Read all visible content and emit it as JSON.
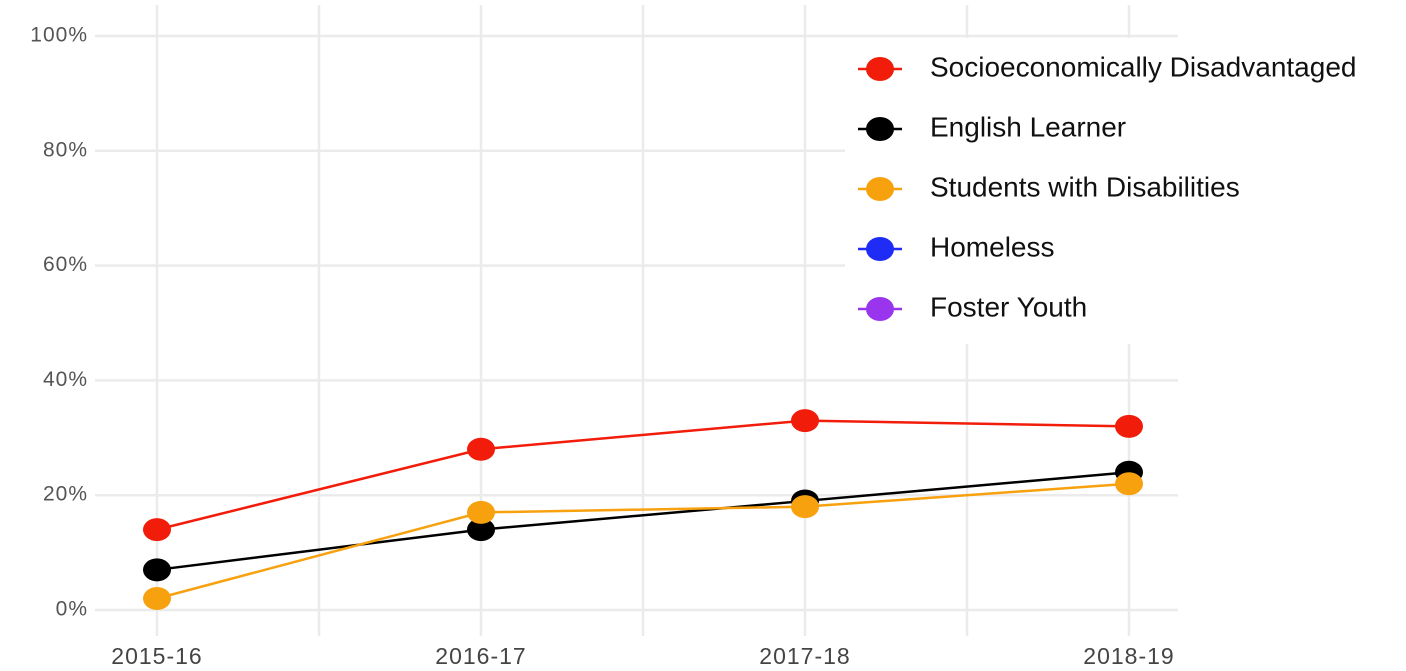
{
  "chart_data": {
    "type": "line",
    "categories": [
      "2015-16",
      "2016-17",
      "2017-18",
      "2018-19"
    ],
    "series": [
      {
        "name": "Socioeconomically Disadvantaged",
        "color": "#f21c0a",
        "values": [
          14,
          28,
          33,
          32
        ]
      },
      {
        "name": "English Learner",
        "color": "#000000",
        "values": [
          7,
          14,
          19,
          24
        ]
      },
      {
        "name": "Students with Disabilities",
        "color": "#f7a10f",
        "values": [
          2,
          17,
          18,
          22
        ]
      },
      {
        "name": "Homeless",
        "color": "#1f2cf5",
        "values": [
          null,
          null,
          null,
          null
        ]
      },
      {
        "name": "Foster Youth",
        "color": "#9a35ee",
        "values": [
          null,
          null,
          null,
          null
        ]
      }
    ],
    "ylim": [
      0,
      100
    ],
    "yticks": [
      {
        "value": 0,
        "label": "0%"
      },
      {
        "value": 20,
        "label": "20%"
      },
      {
        "value": 40,
        "label": "40%"
      },
      {
        "value": 60,
        "label": "60%"
      },
      {
        "value": 80,
        "label": "80%"
      },
      {
        "value": 100,
        "label": "100%"
      }
    ],
    "grid": true,
    "legend": "top-right"
  }
}
